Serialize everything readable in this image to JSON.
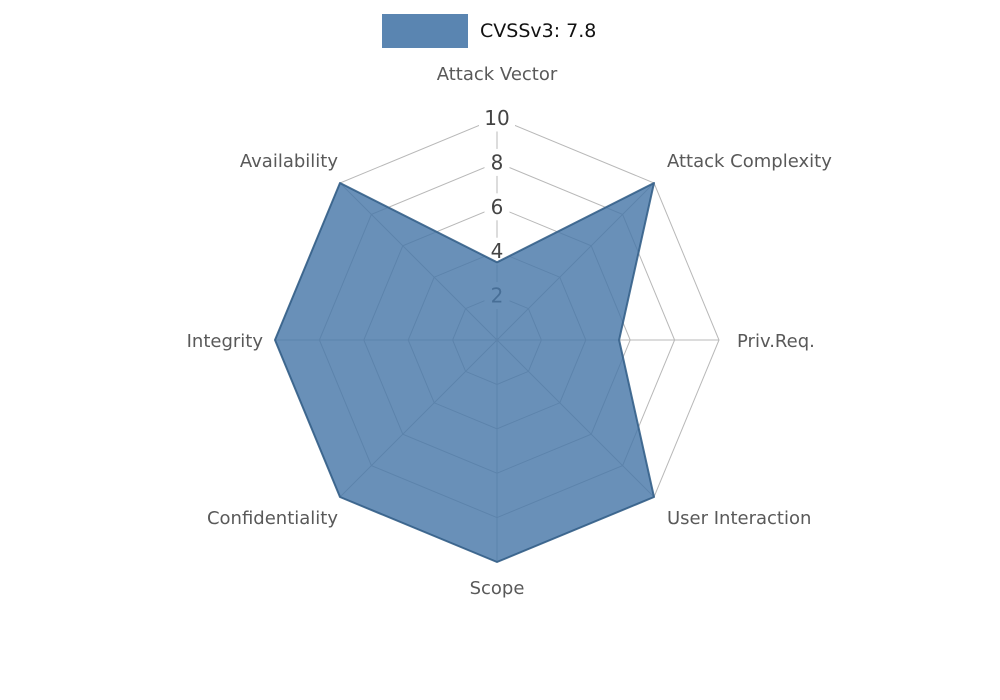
{
  "chart_data": {
    "type": "radar",
    "legend_label": "CVSSv3: 7.8",
    "axes": [
      "Attack Vector",
      "Attack Complexity",
      "Priv.Req.",
      "User Interaction",
      "Scope",
      "Confidentiality",
      "Integrity",
      "Availability"
    ],
    "values": [
      3.5,
      10,
      5.5,
      10,
      10,
      10,
      10,
      10
    ],
    "ticks": [
      2,
      4,
      6,
      8,
      10
    ],
    "range": [
      0,
      10
    ],
    "fill_color": "#4878a8",
    "fill_opacity": 0.82,
    "edge_color": "#35618a",
    "grid_color": "#b8b8b8",
    "axis_label_color": "#595959",
    "tick_label_color": "#444444",
    "tick_box_color": "#ffffff"
  }
}
